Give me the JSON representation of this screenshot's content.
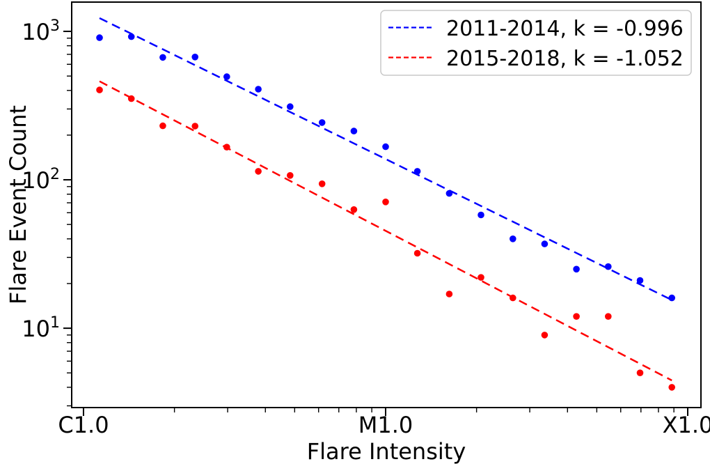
{
  "chart_data": {
    "type": "scatter",
    "title": "",
    "xlabel": "Flare Intensity",
    "ylabel": "Flare Event Count",
    "x_scale": "log",
    "y_scale": "log",
    "grid": false,
    "xlim": [
      0.914,
      110.6
    ],
    "ylim": [
      2.92,
      1575
    ],
    "x_ticks": [
      {
        "value": 1,
        "label": "C1.0"
      },
      {
        "value": 10,
        "label": "M1.0"
      },
      {
        "value": 100,
        "label": "X1.0"
      }
    ],
    "y_ticks": [
      {
        "value": 10,
        "base": "10",
        "exp": "1"
      },
      {
        "value": 100,
        "base": "10",
        "exp": "2"
      },
      {
        "value": 1000,
        "base": "10",
        "exp": "3"
      }
    ],
    "minor_tick_mantissas": [
      2,
      3,
      4,
      5,
      6,
      7,
      8,
      9
    ],
    "x_bins": [
      1.13,
      1.44,
      1.83,
      2.34,
      2.98,
      3.79,
      4.83,
      6.16,
      7.85,
      10.0,
      12.74,
      16.24,
      20.69,
      26.37,
      33.6,
      42.81,
      54.56,
      69.52,
      88.59
    ],
    "series": [
      {
        "name": "2011-2014",
        "legend_label": "2011-2014, k = -0.996",
        "slope_k": -0.996,
        "color": "#0000ff",
        "marker": "dot",
        "counts": [
          907,
          921,
          668,
          672,
          495,
          408,
          311,
          243,
          213,
          167,
          114,
          81,
          58,
          40,
          37,
          25,
          26,
          21,
          16
        ],
        "fit_line": {
          "x1": 1.13,
          "y1": 1228,
          "x2": 88.59,
          "y2": 15.5
        }
      },
      {
        "name": "2015-2018",
        "legend_label": "2015-2018, k = -1.052",
        "slope_k": -1.052,
        "color": "#ff0000",
        "marker": "dot",
        "counts": [
          403,
          352,
          231,
          230,
          166,
          114,
          107,
          94,
          63,
          71,
          32,
          17,
          22,
          16,
          9,
          12,
          12,
          5,
          4
        ],
        "fit_line": {
          "x1": 1.13,
          "y1": 461,
          "x2": 88.59,
          "y2": 4.45
        }
      }
    ],
    "legend": {
      "position": "upper right"
    }
  }
}
